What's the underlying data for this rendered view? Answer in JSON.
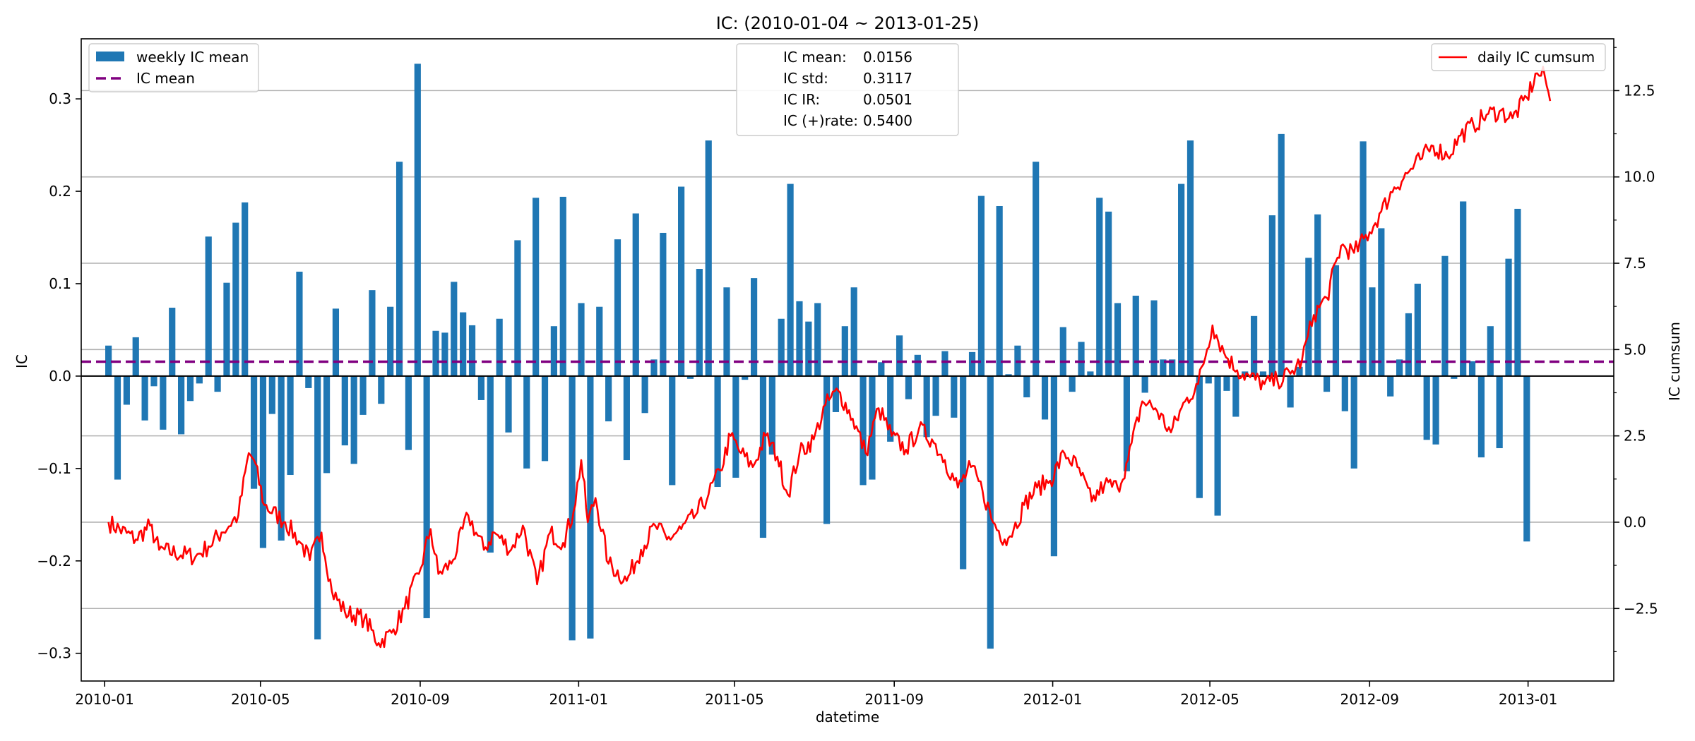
{
  "chart_data": {
    "type": "bar",
    "title": "IC: (2010-01-04 ~ 2013-01-25)",
    "xlabel": "datetime",
    "ylabel": "IC",
    "ylabel_right": "IC cumsum",
    "x_range": [
      "2009-12-14",
      "2013-03-08"
    ],
    "ylim": [
      -0.33,
      0.365
    ],
    "ylim_right": [
      -4.6,
      14.0
    ],
    "x_ticks": [
      "2010-01",
      "2010-05",
      "2010-09",
      "2011-01",
      "2011-05",
      "2011-09",
      "2012-01",
      "2012-05",
      "2012-09",
      "2013-01"
    ],
    "y_ticks": [
      "−0.3",
      "−0.2",
      "−0.1",
      "0.0",
      "0.1",
      "0.2",
      "0.3"
    ],
    "y_ticks_right": [
      "−2.5",
      "0.0",
      "2.5",
      "5.0",
      "7.5",
      "10.0",
      "12.5"
    ],
    "grid": "horizontal lines on right axis",
    "legend_left": [
      "weekly IC mean",
      "IC mean"
    ],
    "legend_right": [
      "daily IC cumsum"
    ],
    "ic_mean": 0.0156,
    "stats": [
      {
        "label": "IC mean:",
        "value": "0.0156"
      },
      {
        "label": "IC std:",
        "value": "0.3117"
      },
      {
        "label": "IC IR:",
        "value": "0.0501"
      },
      {
        "label": "IC (+)rate:",
        "value": "0.5400"
      }
    ],
    "series": [
      {
        "name": "weekly IC mean",
        "color": "#1f77b4",
        "start_date": "2010-01-04",
        "step_days": 7,
        "values": [
          0.033,
          -0.112,
          -0.031,
          0.042,
          -0.048,
          -0.011,
          -0.058,
          0.074,
          -0.063,
          -0.027,
          -0.008,
          0.151,
          -0.017,
          0.101,
          0.166,
          0.188,
          -0.122,
          -0.186,
          -0.041,
          -0.178,
          -0.107,
          0.113,
          -0.013,
          -0.285,
          -0.105,
          0.073,
          -0.075,
          -0.095,
          -0.042,
          0.093,
          -0.03,
          0.075,
          0.232,
          -0.08,
          0.338,
          -0.262,
          0.049,
          0.047,
          0.102,
          0.069,
          0.055,
          -0.026,
          -0.191,
          0.062,
          -0.061,
          0.147,
          -0.1,
          0.193,
          -0.092,
          0.054,
          0.194,
          -0.286,
          0.079,
          -0.284,
          0.075,
          -0.049,
          0.148,
          -0.091,
          0.176,
          -0.04,
          0.018,
          0.155,
          -0.118,
          0.205,
          -0.003,
          0.116,
          0.255,
          -0.12,
          0.096,
          -0.11,
          -0.004,
          0.106,
          -0.175,
          -0.085,
          0.062,
          0.208,
          0.081,
          0.059,
          0.079,
          -0.16,
          -0.039,
          0.054,
          0.096,
          -0.118,
          -0.112,
          0.015,
          -0.071,
          0.044,
          -0.025,
          0.023,
          -0.066,
          -0.043,
          0.027,
          -0.045,
          -0.209,
          0.026,
          0.195,
          -0.295,
          0.184,
          0.002,
          0.033,
          -0.023,
          0.232,
          -0.047,
          -0.195,
          0.053,
          -0.017,
          0.037,
          0.005,
          0.193,
          0.178,
          0.079,
          -0.103,
          0.087,
          -0.018,
          0.082,
          0.018,
          0.018,
          0.208,
          0.255,
          -0.132,
          -0.008,
          -0.151,
          -0.016,
          -0.044,
          0.005,
          0.065,
          0.005,
          0.174,
          0.262,
          -0.034,
          0.01,
          0.128,
          0.175,
          -0.017,
          0.12,
          -0.038,
          -0.1,
          0.254,
          0.096,
          0.16,
          -0.022,
          0.018,
          0.068,
          0.1,
          -0.069,
          -0.074,
          0.13,
          -0.003,
          0.189,
          0.016,
          -0.088,
          0.054,
          -0.078,
          0.127,
          0.181,
          -0.179
        ]
      },
      {
        "name": "daily IC cumsum",
        "color": "#ff0000",
        "keypoints": [
          [
            "2010-01-04",
            0.0
          ],
          [
            "2010-01-25",
            -0.5
          ],
          [
            "2010-02-05",
            -0.1
          ],
          [
            "2010-02-12",
            -0.8
          ],
          [
            "2010-03-12",
            -1.0
          ],
          [
            "2010-03-22",
            -0.7
          ],
          [
            "2010-04-01",
            -0.3
          ],
          [
            "2010-04-14",
            0.2
          ],
          [
            "2010-04-22",
            2.0
          ],
          [
            "2010-04-26",
            1.8
          ],
          [
            "2010-05-04",
            0.5
          ],
          [
            "2010-05-20",
            0.0
          ],
          [
            "2010-06-01",
            -0.6
          ],
          [
            "2010-06-08",
            -1.1
          ],
          [
            "2010-06-17",
            -0.3
          ],
          [
            "2010-06-25",
            -2.0
          ],
          [
            "2010-07-05",
            -2.6
          ],
          [
            "2010-07-20",
            -2.8
          ],
          [
            "2010-07-31",
            -3.5
          ],
          [
            "2010-08-10",
            -3.2
          ],
          [
            "2010-08-20",
            -2.5
          ],
          [
            "2010-08-31",
            -1.5
          ],
          [
            "2010-09-09",
            -0.2
          ],
          [
            "2010-09-15",
            -1.5
          ],
          [
            "2010-09-25",
            -1.2
          ],
          [
            "2010-10-08",
            0.2
          ],
          [
            "2010-10-20",
            -0.8
          ],
          [
            "2010-10-28",
            -0.3
          ],
          [
            "2010-11-10",
            -0.8
          ],
          [
            "2010-11-19",
            -0.1
          ],
          [
            "2010-11-30",
            -1.8
          ],
          [
            "2010-12-10",
            -0.3
          ],
          [
            "2010-12-20",
            -0.6
          ],
          [
            "2010-12-28",
            0.3
          ],
          [
            "2011-01-03",
            1.8
          ],
          [
            "2011-01-08",
            0.0
          ],
          [
            "2011-01-14",
            0.7
          ],
          [
            "2011-01-24",
            -1.2
          ],
          [
            "2011-02-07",
            -1.7
          ],
          [
            "2011-02-18",
            -0.8
          ],
          [
            "2011-03-01",
            -0.1
          ],
          [
            "2011-03-10",
            -0.5
          ],
          [
            "2011-03-21",
            -0.2
          ],
          [
            "2011-04-01",
            0.2
          ],
          [
            "2011-04-11",
            0.8
          ],
          [
            "2011-04-20",
            1.5
          ],
          [
            "2011-04-28",
            2.5
          ],
          [
            "2011-05-06",
            2.0
          ],
          [
            "2011-05-15",
            1.6
          ],
          [
            "2011-05-25",
            2.5
          ],
          [
            "2011-06-03",
            1.9
          ],
          [
            "2011-06-11",
            0.8
          ],
          [
            "2011-06-20",
            2.0
          ],
          [
            "2011-07-01",
            2.4
          ],
          [
            "2011-07-10",
            3.4
          ],
          [
            "2011-07-20",
            3.8
          ],
          [
            "2011-07-31",
            3.0
          ],
          [
            "2011-08-10",
            2.0
          ],
          [
            "2011-08-20",
            3.3
          ],
          [
            "2011-08-30",
            2.5
          ],
          [
            "2011-09-10",
            2.1
          ],
          [
            "2011-09-20",
            2.7
          ],
          [
            "2011-09-30",
            2.4
          ],
          [
            "2011-10-10",
            1.8
          ],
          [
            "2011-10-20",
            1.0
          ],
          [
            "2011-10-30",
            1.6
          ],
          [
            "2011-11-08",
            0.9
          ],
          [
            "2011-11-16",
            0.0
          ],
          [
            "2011-11-25",
            -0.5
          ],
          [
            "2011-12-02",
            -0.2
          ],
          [
            "2011-12-10",
            0.5
          ],
          [
            "2011-12-20",
            1.0
          ],
          [
            "2011-12-30",
            1.2
          ],
          [
            "2012-01-10",
            2.0
          ],
          [
            "2012-01-20",
            1.6
          ],
          [
            "2012-01-31",
            0.6
          ],
          [
            "2012-02-10",
            1.1
          ],
          [
            "2012-02-20",
            1.0
          ],
          [
            "2012-02-28",
            1.8
          ],
          [
            "2012-03-10",
            3.5
          ],
          [
            "2012-03-20",
            3.3
          ],
          [
            "2012-04-01",
            2.6
          ],
          [
            "2012-04-12",
            3.5
          ],
          [
            "2012-04-22",
            4.0
          ],
          [
            "2012-05-03",
            5.7
          ],
          [
            "2012-05-12",
            4.9
          ],
          [
            "2012-05-22",
            4.4
          ],
          [
            "2012-06-01",
            4.2
          ],
          [
            "2012-06-12",
            4.0
          ],
          [
            "2012-06-22",
            4.1
          ],
          [
            "2012-07-02",
            4.3
          ],
          [
            "2012-07-11",
            4.7
          ],
          [
            "2012-07-20",
            6.0
          ],
          [
            "2012-07-30",
            6.5
          ],
          [
            "2012-08-10",
            8.0
          ],
          [
            "2012-08-20",
            7.8
          ],
          [
            "2012-09-01",
            8.4
          ],
          [
            "2012-09-10",
            9.0
          ],
          [
            "2012-09-20",
            9.7
          ],
          [
            "2012-09-30",
            10.1
          ],
          [
            "2012-10-10",
            10.5
          ],
          [
            "2012-10-20",
            10.9
          ],
          [
            "2012-10-31",
            10.6
          ],
          [
            "2012-11-10",
            11.2
          ],
          [
            "2012-11-20",
            11.5
          ],
          [
            "2012-11-30",
            11.8
          ],
          [
            "2012-12-10",
            11.9
          ],
          [
            "2012-12-20",
            11.7
          ],
          [
            "2012-12-31",
            12.3
          ],
          [
            "2013-01-08",
            13.0
          ],
          [
            "2013-01-14",
            12.9
          ],
          [
            "2013-01-18",
            12.2
          ]
        ]
      }
    ]
  },
  "colors": {
    "bar": "#1f77b4",
    "mean_line": "#800080",
    "cumsum_line": "#ff0000",
    "grid": "#b0b0b0"
  }
}
